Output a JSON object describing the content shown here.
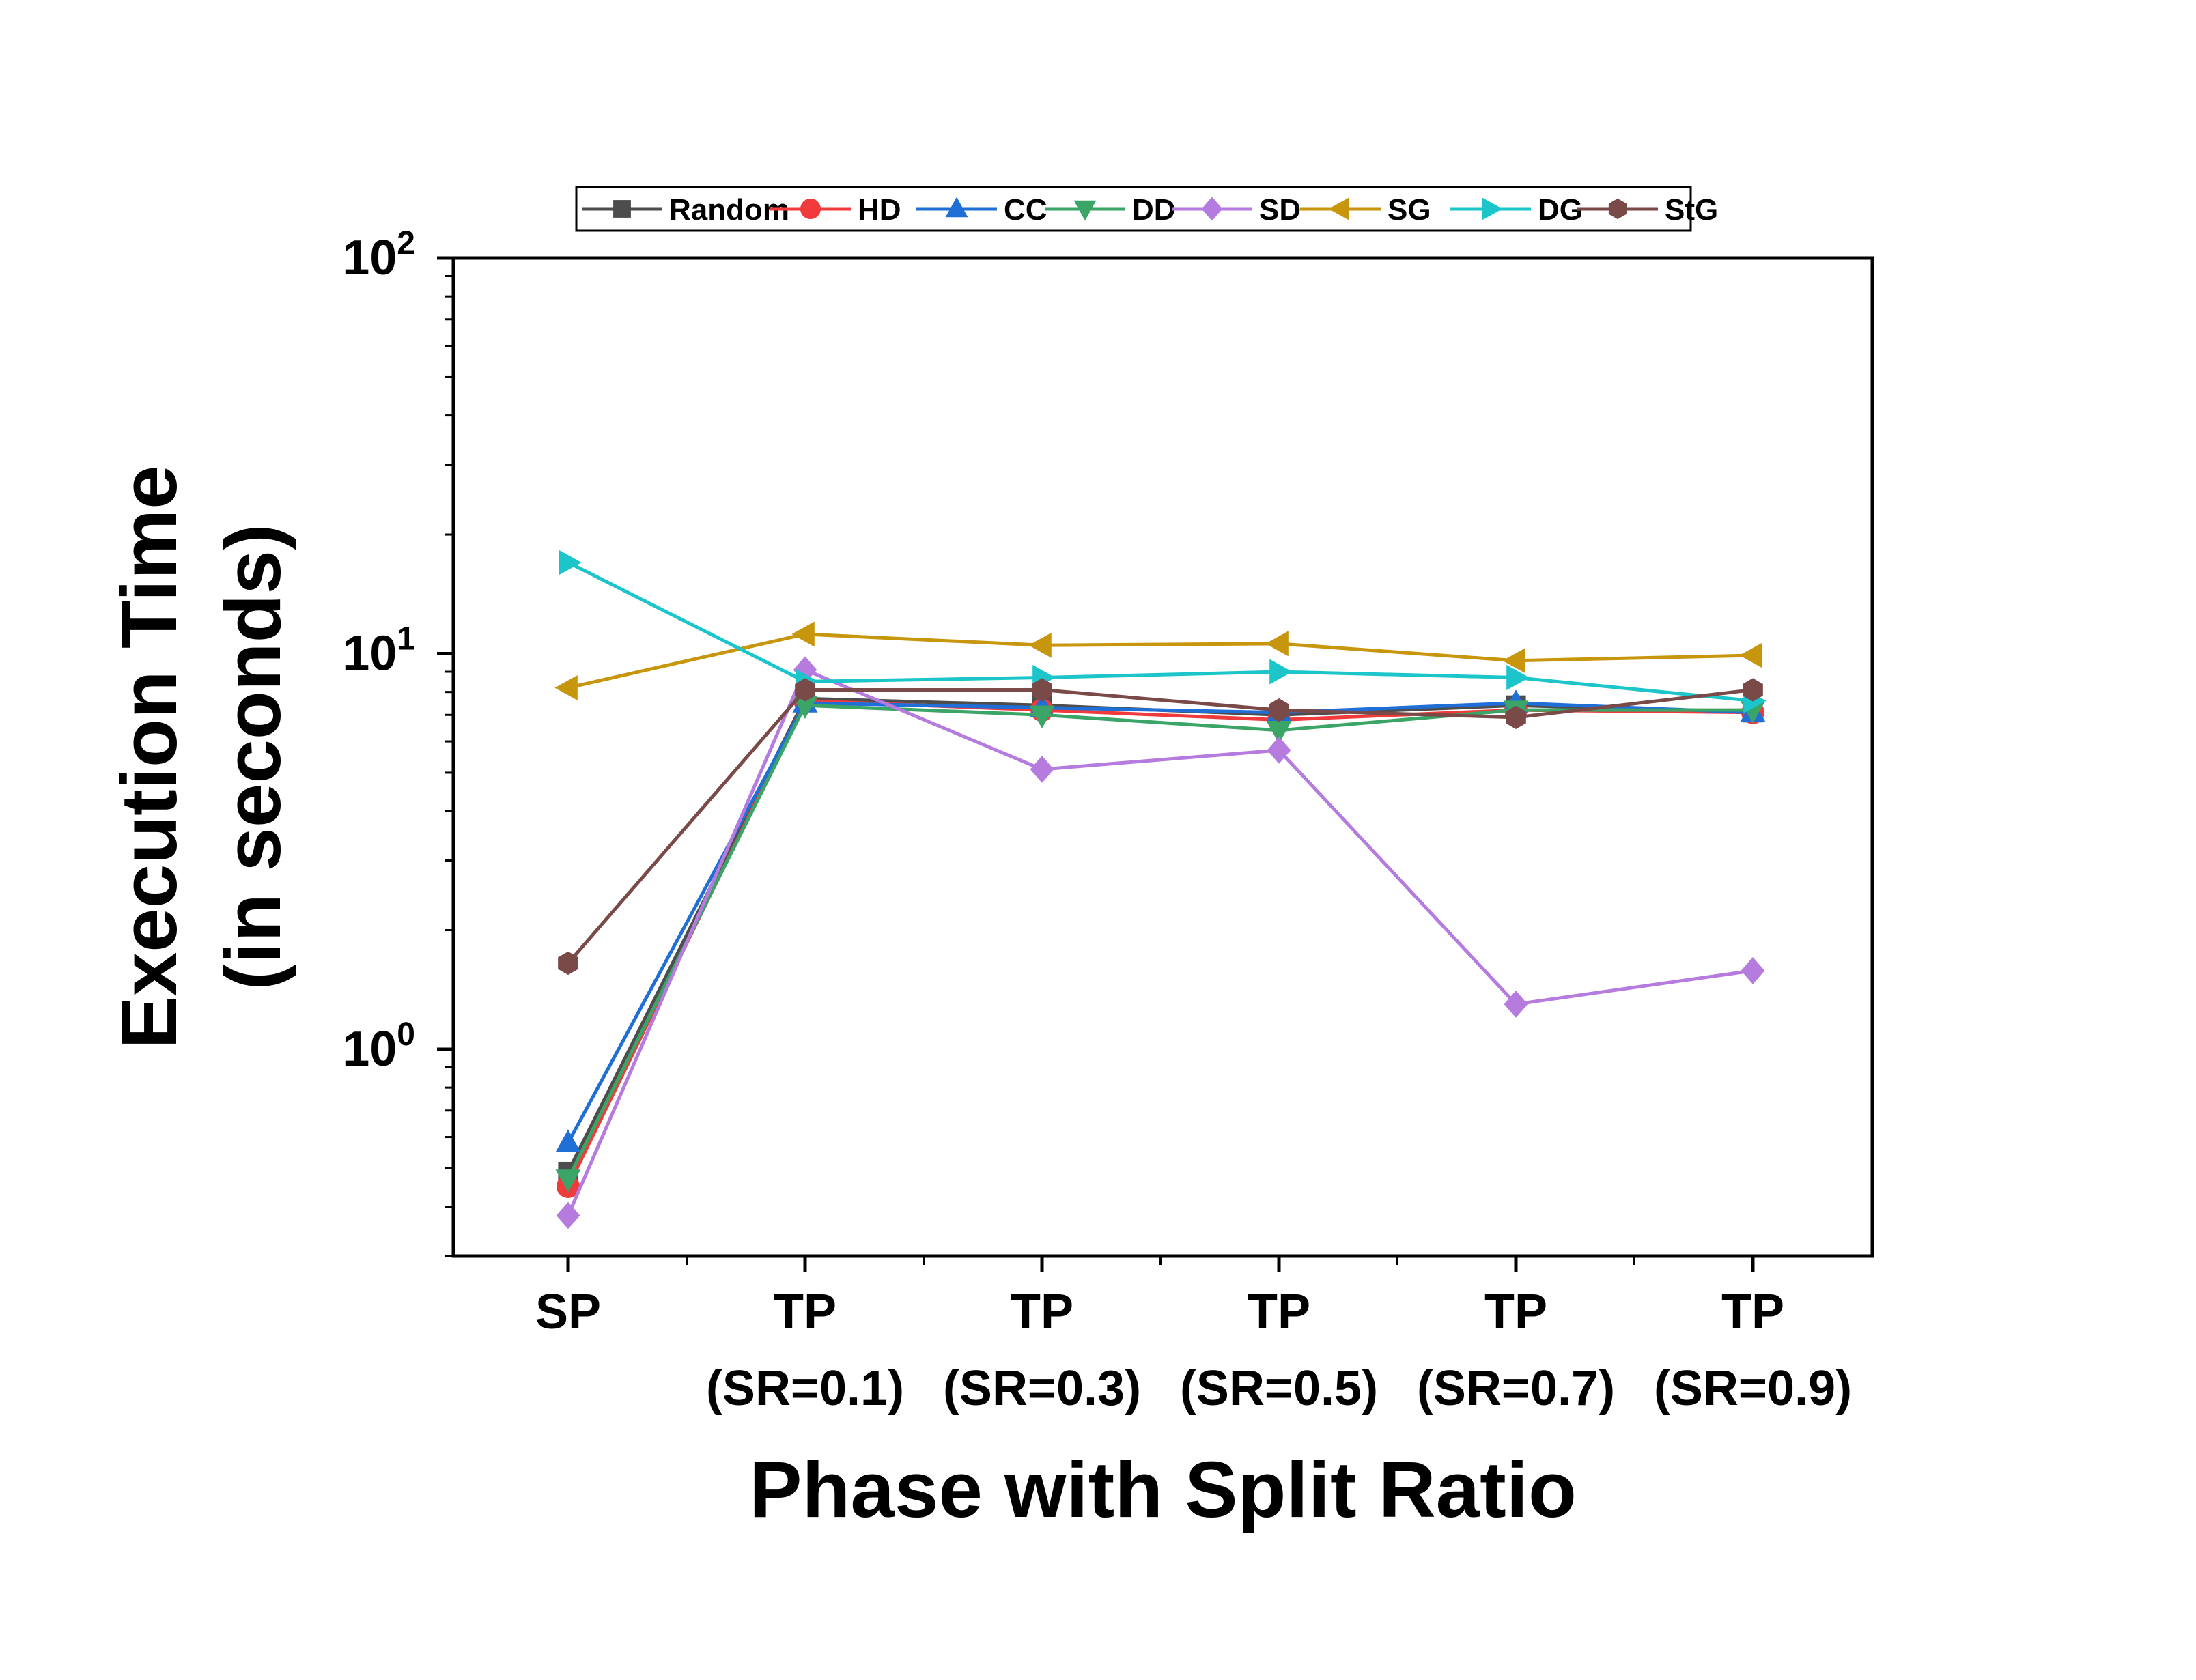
{
  "chart_data": {
    "type": "line",
    "xlabel": "Phase with Split Ratio",
    "ylabel_lines": [
      "Execution Time",
      "(in seconds)"
    ],
    "yscale": "log",
    "ylim": [
      0.3,
      100
    ],
    "y_ticks": [
      {
        "value": 1,
        "base": "10",
        "exp": "0"
      },
      {
        "value": 10,
        "base": "10",
        "exp": "1"
      },
      {
        "value": 100,
        "base": "10",
        "exp": "2"
      }
    ],
    "categories": [
      {
        "line1": "SP",
        "line2": ""
      },
      {
        "line1": "TP",
        "line2": "(SR=0.1)"
      },
      {
        "line1": "TP",
        "line2": "(SR=0.3)"
      },
      {
        "line1": "TP",
        "line2": "(SR=0.5)"
      },
      {
        "line1": "TP",
        "line2": "(SR=0.7)"
      },
      {
        "line1": "TP",
        "line2": "(SR=0.9)"
      }
    ],
    "legend_position": "top",
    "grid": false,
    "series": [
      {
        "name": "Random",
        "color": "#4d4d4d",
        "marker": "square",
        "values": [
          0.49,
          7.7,
          7.4,
          7.0,
          7.4,
          7.1
        ]
      },
      {
        "name": "HD",
        "color": "#ef3b3b",
        "marker": "circle",
        "values": [
          0.45,
          7.6,
          7.2,
          6.8,
          7.2,
          7.1
        ]
      },
      {
        "name": "CC",
        "color": "#1f6fd6",
        "marker": "triangle-up",
        "values": [
          0.58,
          7.5,
          7.3,
          7.1,
          7.5,
          7.1
        ]
      },
      {
        "name": "DD",
        "color": "#3aa566",
        "marker": "triangle-down",
        "values": [
          0.47,
          7.4,
          7.0,
          6.4,
          7.2,
          7.2
        ]
      },
      {
        "name": "SD",
        "color": "#b57bde",
        "marker": "diamond",
        "values": [
          0.38,
          9.1,
          5.1,
          5.7,
          1.3,
          1.58
        ]
      },
      {
        "name": "SG",
        "color": "#c8960c",
        "marker": "triangle-left",
        "values": [
          8.2,
          11.2,
          10.5,
          10.6,
          9.6,
          9.9
        ]
      },
      {
        "name": "DG",
        "color": "#1cc5c9",
        "marker": "triangle-right",
        "values": [
          17.0,
          8.5,
          8.7,
          9.0,
          8.7,
          7.6
        ]
      },
      {
        "name": "StG",
        "color": "#7a4a48",
        "marker": "hexagon",
        "values": [
          1.65,
          8.1,
          8.1,
          7.2,
          6.9,
          8.1
        ]
      }
    ]
  }
}
